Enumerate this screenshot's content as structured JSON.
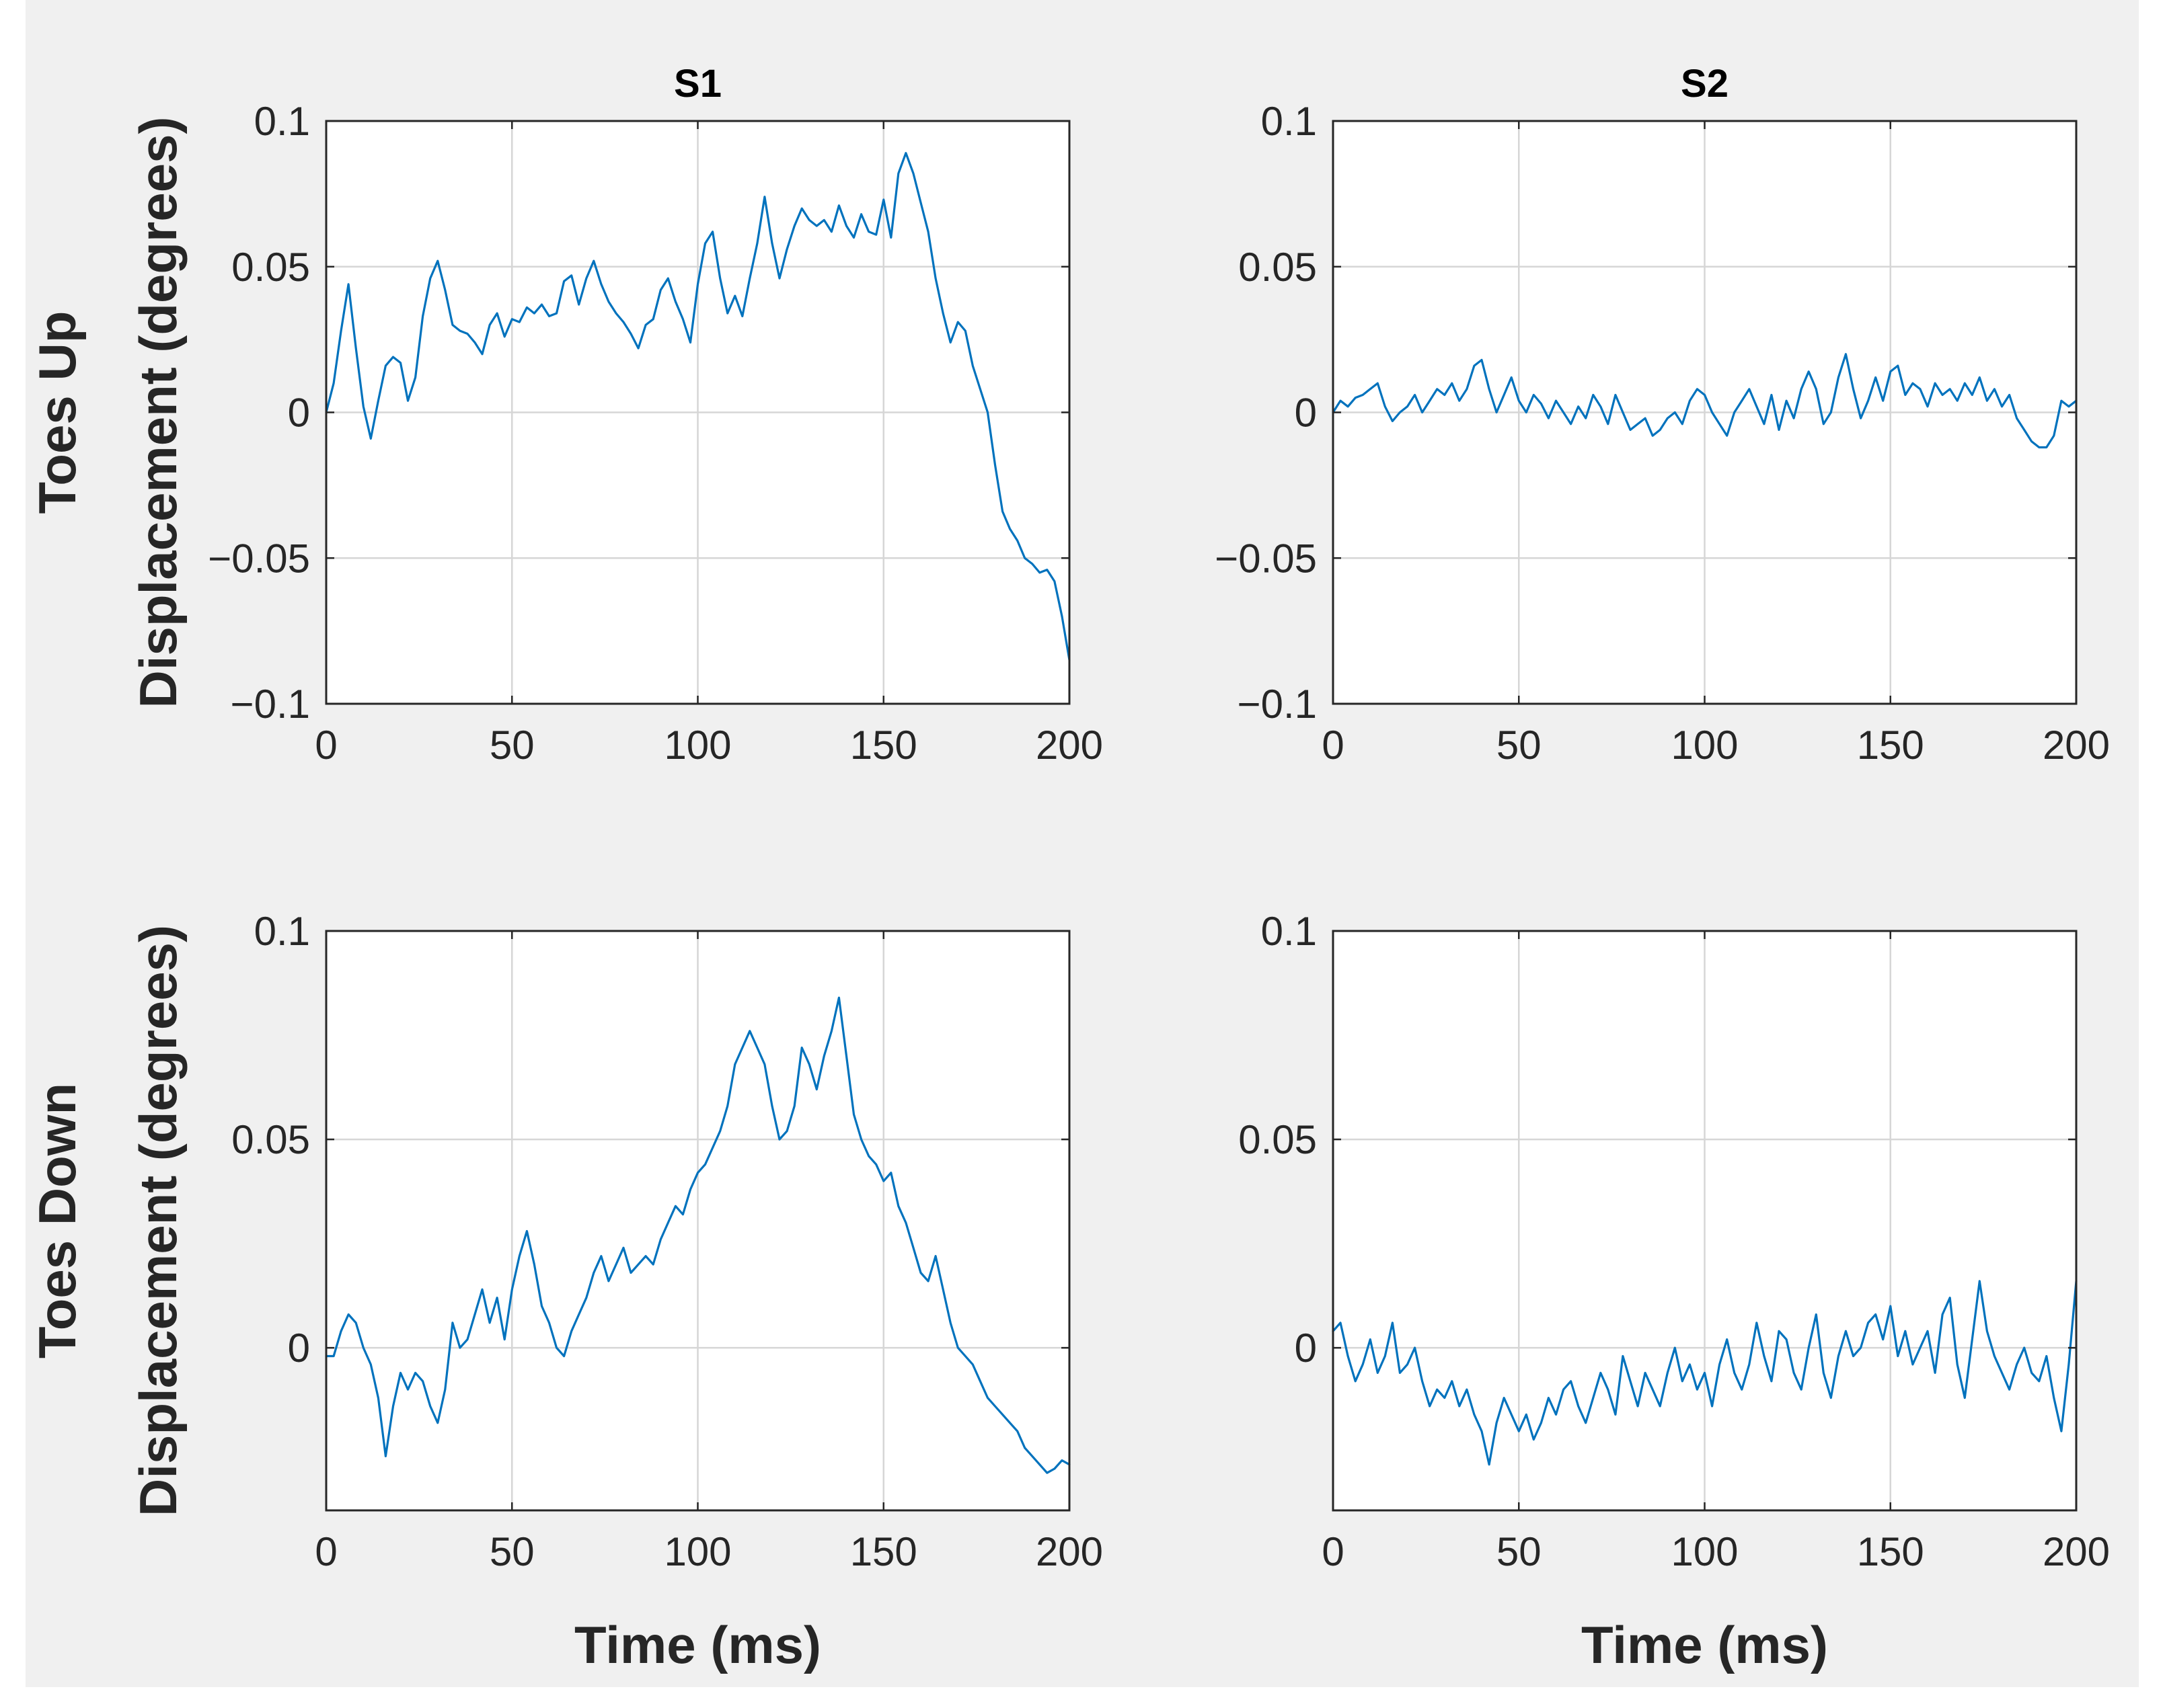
{
  "colors": {
    "background": "#f0f0f0",
    "line": "#0072bd"
  },
  "chart_data": [
    {
      "type": "line",
      "panel": "top-left",
      "title": "S1",
      "xlabel": "",
      "ylabel": "Toes Up\nDisplacement (degrees)",
      "xlim": [
        0,
        200
      ],
      "ylim": [
        -0.1,
        0.1
      ],
      "xticks": [
        0,
        50,
        100,
        150,
        200
      ],
      "xtick_labels": [
        "0",
        "50",
        "100",
        "150",
        "200"
      ],
      "yticks": [
        -0.1,
        -0.05,
        0,
        0.05,
        0.1
      ],
      "ytick_labels": [
        "−0.1",
        "−0.05",
        "0",
        "0.05",
        "0.1"
      ],
      "grid": true,
      "series": [
        {
          "name": "S1 toes up",
          "x": [
            0,
            2,
            4,
            6,
            8,
            10,
            12,
            14,
            16,
            18,
            20,
            22,
            24,
            26,
            28,
            30,
            32,
            34,
            36,
            38,
            40,
            42,
            44,
            46,
            48,
            50,
            52,
            54,
            56,
            58,
            60,
            62,
            64,
            66,
            68,
            70,
            72,
            74,
            76,
            78,
            80,
            82,
            84,
            86,
            88,
            90,
            92,
            94,
            96,
            98,
            100,
            102,
            104,
            106,
            108,
            110,
            112,
            114,
            116,
            118,
            120,
            122,
            124,
            126,
            128,
            130,
            132,
            134,
            136,
            138,
            140,
            142,
            144,
            146,
            148,
            150,
            152,
            154,
            156,
            158,
            160,
            162,
            164,
            166,
            168,
            170,
            172,
            174,
            176,
            178,
            180,
            182,
            184,
            186,
            188,
            190,
            192,
            194,
            196,
            198,
            200
          ],
          "y": [
            0.0,
            0.01,
            0.028,
            0.044,
            0.022,
            0.002,
            -0.009,
            0.004,
            0.016,
            0.019,
            0.017,
            0.004,
            0.012,
            0.033,
            0.046,
            0.052,
            0.042,
            0.03,
            0.028,
            0.027,
            0.024,
            0.02,
            0.03,
            0.034,
            0.026,
            0.032,
            0.031,
            0.036,
            0.034,
            0.037,
            0.033,
            0.034,
            0.045,
            0.047,
            0.037,
            0.046,
            0.052,
            0.044,
            0.038,
            0.034,
            0.031,
            0.027,
            0.022,
            0.03,
            0.032,
            0.042,
            0.046,
            0.038,
            0.032,
            0.024,
            0.044,
            0.058,
            0.062,
            0.046,
            0.034,
            0.04,
            0.033,
            0.046,
            0.058,
            0.074,
            0.058,
            0.046,
            0.056,
            0.064,
            0.07,
            0.066,
            0.064,
            0.066,
            0.062,
            0.071,
            0.064,
            0.06,
            0.068,
            0.062,
            0.061,
            0.073,
            0.06,
            0.082,
            0.089,
            0.082,
            0.072,
            0.062,
            0.046,
            0.034,
            0.024,
            0.031,
            0.028,
            0.016,
            0.008,
            0.0,
            -0.018,
            -0.034,
            -0.04,
            -0.044,
            -0.05,
            -0.052,
            -0.055,
            -0.054,
            -0.058,
            -0.07,
            -0.085
          ]
        }
      ]
    },
    {
      "type": "line",
      "panel": "top-right",
      "title": "S2",
      "xlabel": "",
      "ylabel": "",
      "xlim": [
        0,
        200
      ],
      "ylim": [
        -0.1,
        0.1
      ],
      "xticks": [
        0,
        50,
        100,
        150,
        200
      ],
      "xtick_labels": [
        "0",
        "50",
        "100",
        "150",
        "200"
      ],
      "yticks": [
        -0.1,
        -0.05,
        0,
        0.05,
        0.1
      ],
      "ytick_labels": [
        "−0.1",
        "−0.05",
        "0",
        "0.05",
        "0.1"
      ],
      "grid": true,
      "series": [
        {
          "name": "S2 toes up",
          "x": [
            0,
            2,
            4,
            6,
            8,
            10,
            12,
            14,
            16,
            18,
            20,
            22,
            24,
            26,
            28,
            30,
            32,
            34,
            36,
            38,
            40,
            42,
            44,
            46,
            48,
            50,
            52,
            54,
            56,
            58,
            60,
            62,
            64,
            66,
            68,
            70,
            72,
            74,
            76,
            78,
            80,
            82,
            84,
            86,
            88,
            90,
            92,
            94,
            96,
            98,
            100,
            102,
            104,
            106,
            108,
            110,
            112,
            114,
            116,
            118,
            120,
            122,
            124,
            126,
            128,
            130,
            132,
            134,
            136,
            138,
            140,
            142,
            144,
            146,
            148,
            150,
            152,
            154,
            156,
            158,
            160,
            162,
            164,
            166,
            168,
            170,
            172,
            174,
            176,
            178,
            180,
            182,
            184,
            186,
            188,
            190,
            192,
            194,
            196,
            198,
            200
          ],
          "y": [
            0.0,
            0.004,
            0.002,
            0.005,
            0.006,
            0.008,
            0.01,
            0.002,
            -0.003,
            0.0,
            0.002,
            0.006,
            0.0,
            0.004,
            0.008,
            0.006,
            0.01,
            0.004,
            0.008,
            0.016,
            0.018,
            0.008,
            0.0,
            0.006,
            0.012,
            0.004,
            0.0,
            0.006,
            0.003,
            -0.002,
            0.004,
            0.0,
            -0.004,
            0.002,
            -0.002,
            0.006,
            0.002,
            -0.004,
            0.006,
            0.0,
            -0.006,
            -0.004,
            -0.002,
            -0.008,
            -0.006,
            -0.002,
            0.0,
            -0.004,
            0.004,
            0.008,
            0.006,
            0.0,
            -0.004,
            -0.008,
            0.0,
            0.004,
            0.008,
            0.002,
            -0.004,
            0.006,
            -0.006,
            0.004,
            -0.002,
            0.008,
            0.014,
            0.008,
            -0.004,
            0.0,
            0.012,
            0.02,
            0.008,
            -0.002,
            0.004,
            0.012,
            0.004,
            0.014,
            0.016,
            0.006,
            0.01,
            0.008,
            0.002,
            0.01,
            0.006,
            0.008,
            0.004,
            0.01,
            0.006,
            0.012,
            0.004,
            0.008,
            0.002,
            0.006,
            -0.002,
            -0.006,
            -0.01,
            -0.012,
            -0.012,
            -0.008,
            0.004,
            0.002,
            0.004
          ]
        }
      ]
    },
    {
      "type": "line",
      "panel": "bottom-left",
      "title": "",
      "xlabel": "Time (ms)",
      "ylabel": "Toes Down\nDisplacement (degrees)",
      "xlim": [
        0,
        200
      ],
      "ylim": [
        -0.039,
        0.1
      ],
      "xticks": [
        0,
        50,
        100,
        150,
        200
      ],
      "xtick_labels": [
        "0",
        "50",
        "100",
        "150",
        "200"
      ],
      "yticks": [
        0,
        0.05,
        0.1
      ],
      "ytick_labels": [
        "0",
        "0.05",
        "0.1"
      ],
      "grid": true,
      "series": [
        {
          "name": "S1 toes down",
          "x": [
            0,
            2,
            4,
            6,
            8,
            10,
            12,
            14,
            16,
            18,
            20,
            22,
            24,
            26,
            28,
            30,
            32,
            34,
            36,
            38,
            40,
            42,
            44,
            46,
            48,
            50,
            52,
            54,
            56,
            58,
            60,
            62,
            64,
            66,
            68,
            70,
            72,
            74,
            76,
            78,
            80,
            82,
            84,
            86,
            88,
            90,
            92,
            94,
            96,
            98,
            100,
            102,
            104,
            106,
            108,
            110,
            112,
            114,
            116,
            118,
            120,
            122,
            124,
            126,
            128,
            130,
            132,
            134,
            136,
            138,
            140,
            142,
            144,
            146,
            148,
            150,
            152,
            154,
            156,
            158,
            160,
            162,
            164,
            166,
            168,
            170,
            172,
            174,
            176,
            178,
            180,
            182,
            184,
            186,
            188,
            190,
            192,
            194,
            196,
            198,
            200
          ],
          "y": [
            -0.002,
            -0.002,
            0.004,
            0.008,
            0.006,
            0.0,
            -0.004,
            -0.012,
            -0.026,
            -0.014,
            -0.006,
            -0.01,
            -0.006,
            -0.008,
            -0.014,
            -0.018,
            -0.01,
            0.006,
            0.0,
            0.002,
            0.008,
            0.014,
            0.006,
            0.012,
            0.002,
            0.014,
            0.022,
            0.028,
            0.02,
            0.01,
            0.006,
            0.0,
            -0.002,
            0.004,
            0.008,
            0.012,
            0.018,
            0.022,
            0.016,
            0.02,
            0.024,
            0.018,
            0.02,
            0.022,
            0.02,
            0.026,
            0.03,
            0.034,
            0.032,
            0.038,
            0.042,
            0.044,
            0.048,
            0.052,
            0.058,
            0.068,
            0.072,
            0.076,
            0.072,
            0.068,
            0.058,
            0.05,
            0.052,
            0.058,
            0.072,
            0.068,
            0.062,
            0.07,
            0.076,
            0.084,
            0.07,
            0.056,
            0.05,
            0.046,
            0.044,
            0.04,
            0.042,
            0.034,
            0.03,
            0.024,
            0.018,
            0.016,
            0.022,
            0.014,
            0.006,
            0.0,
            -0.002,
            -0.004,
            -0.008,
            -0.012,
            -0.014,
            -0.016,
            -0.018,
            -0.02,
            -0.024,
            -0.026,
            -0.028,
            -0.03,
            -0.029,
            -0.027,
            -0.028
          ]
        }
      ]
    },
    {
      "type": "line",
      "panel": "bottom-right",
      "title": "",
      "xlabel": "Time (ms)",
      "ylabel": "",
      "xlim": [
        0,
        200
      ],
      "ylim": [
        -0.039,
        0.1
      ],
      "xticks": [
        0,
        50,
        100,
        150,
        200
      ],
      "xtick_labels": [
        "0",
        "50",
        "100",
        "150",
        "200"
      ],
      "yticks": [
        0,
        0.05,
        0.1
      ],
      "ytick_labels": [
        "0",
        "0.05",
        "0.1"
      ],
      "grid": true,
      "series": [
        {
          "name": "S2 toes down",
          "x": [
            0,
            2,
            4,
            6,
            8,
            10,
            12,
            14,
            16,
            18,
            20,
            22,
            24,
            26,
            28,
            30,
            32,
            34,
            36,
            38,
            40,
            42,
            44,
            46,
            48,
            50,
            52,
            54,
            56,
            58,
            60,
            62,
            64,
            66,
            68,
            70,
            72,
            74,
            76,
            78,
            80,
            82,
            84,
            86,
            88,
            90,
            92,
            94,
            96,
            98,
            100,
            102,
            104,
            106,
            108,
            110,
            112,
            114,
            116,
            118,
            120,
            122,
            124,
            126,
            128,
            130,
            132,
            134,
            136,
            138,
            140,
            142,
            144,
            146,
            148,
            150,
            152,
            154,
            156,
            158,
            160,
            162,
            164,
            166,
            168,
            170,
            172,
            174,
            176,
            178,
            180,
            182,
            184,
            186,
            188,
            190,
            192,
            194,
            196,
            198,
            200
          ],
          "y": [
            0.004,
            0.006,
            -0.002,
            -0.008,
            -0.004,
            0.002,
            -0.006,
            -0.002,
            0.006,
            -0.006,
            -0.004,
            0.0,
            -0.008,
            -0.014,
            -0.01,
            -0.012,
            -0.008,
            -0.014,
            -0.01,
            -0.016,
            -0.02,
            -0.028,
            -0.018,
            -0.012,
            -0.016,
            -0.02,
            -0.016,
            -0.022,
            -0.018,
            -0.012,
            -0.016,
            -0.01,
            -0.008,
            -0.014,
            -0.018,
            -0.012,
            -0.006,
            -0.01,
            -0.016,
            -0.002,
            -0.008,
            -0.014,
            -0.006,
            -0.01,
            -0.014,
            -0.006,
            0.0,
            -0.008,
            -0.004,
            -0.01,
            -0.006,
            -0.014,
            -0.004,
            0.002,
            -0.006,
            -0.01,
            -0.004,
            0.006,
            -0.002,
            -0.008,
            0.004,
            0.002,
            -0.006,
            -0.01,
            0.0,
            0.008,
            -0.006,
            -0.012,
            -0.002,
            0.004,
            -0.002,
            0.0,
            0.006,
            0.008,
            0.002,
            0.01,
            -0.002,
            0.004,
            -0.004,
            0.0,
            0.004,
            -0.006,
            0.008,
            0.012,
            -0.004,
            -0.012,
            0.002,
            0.016,
            0.004,
            -0.002,
            -0.006,
            -0.01,
            -0.004,
            0.0,
            -0.006,
            -0.008,
            -0.002,
            -0.012,
            -0.02,
            -0.004,
            0.016
          ]
        }
      ]
    }
  ]
}
